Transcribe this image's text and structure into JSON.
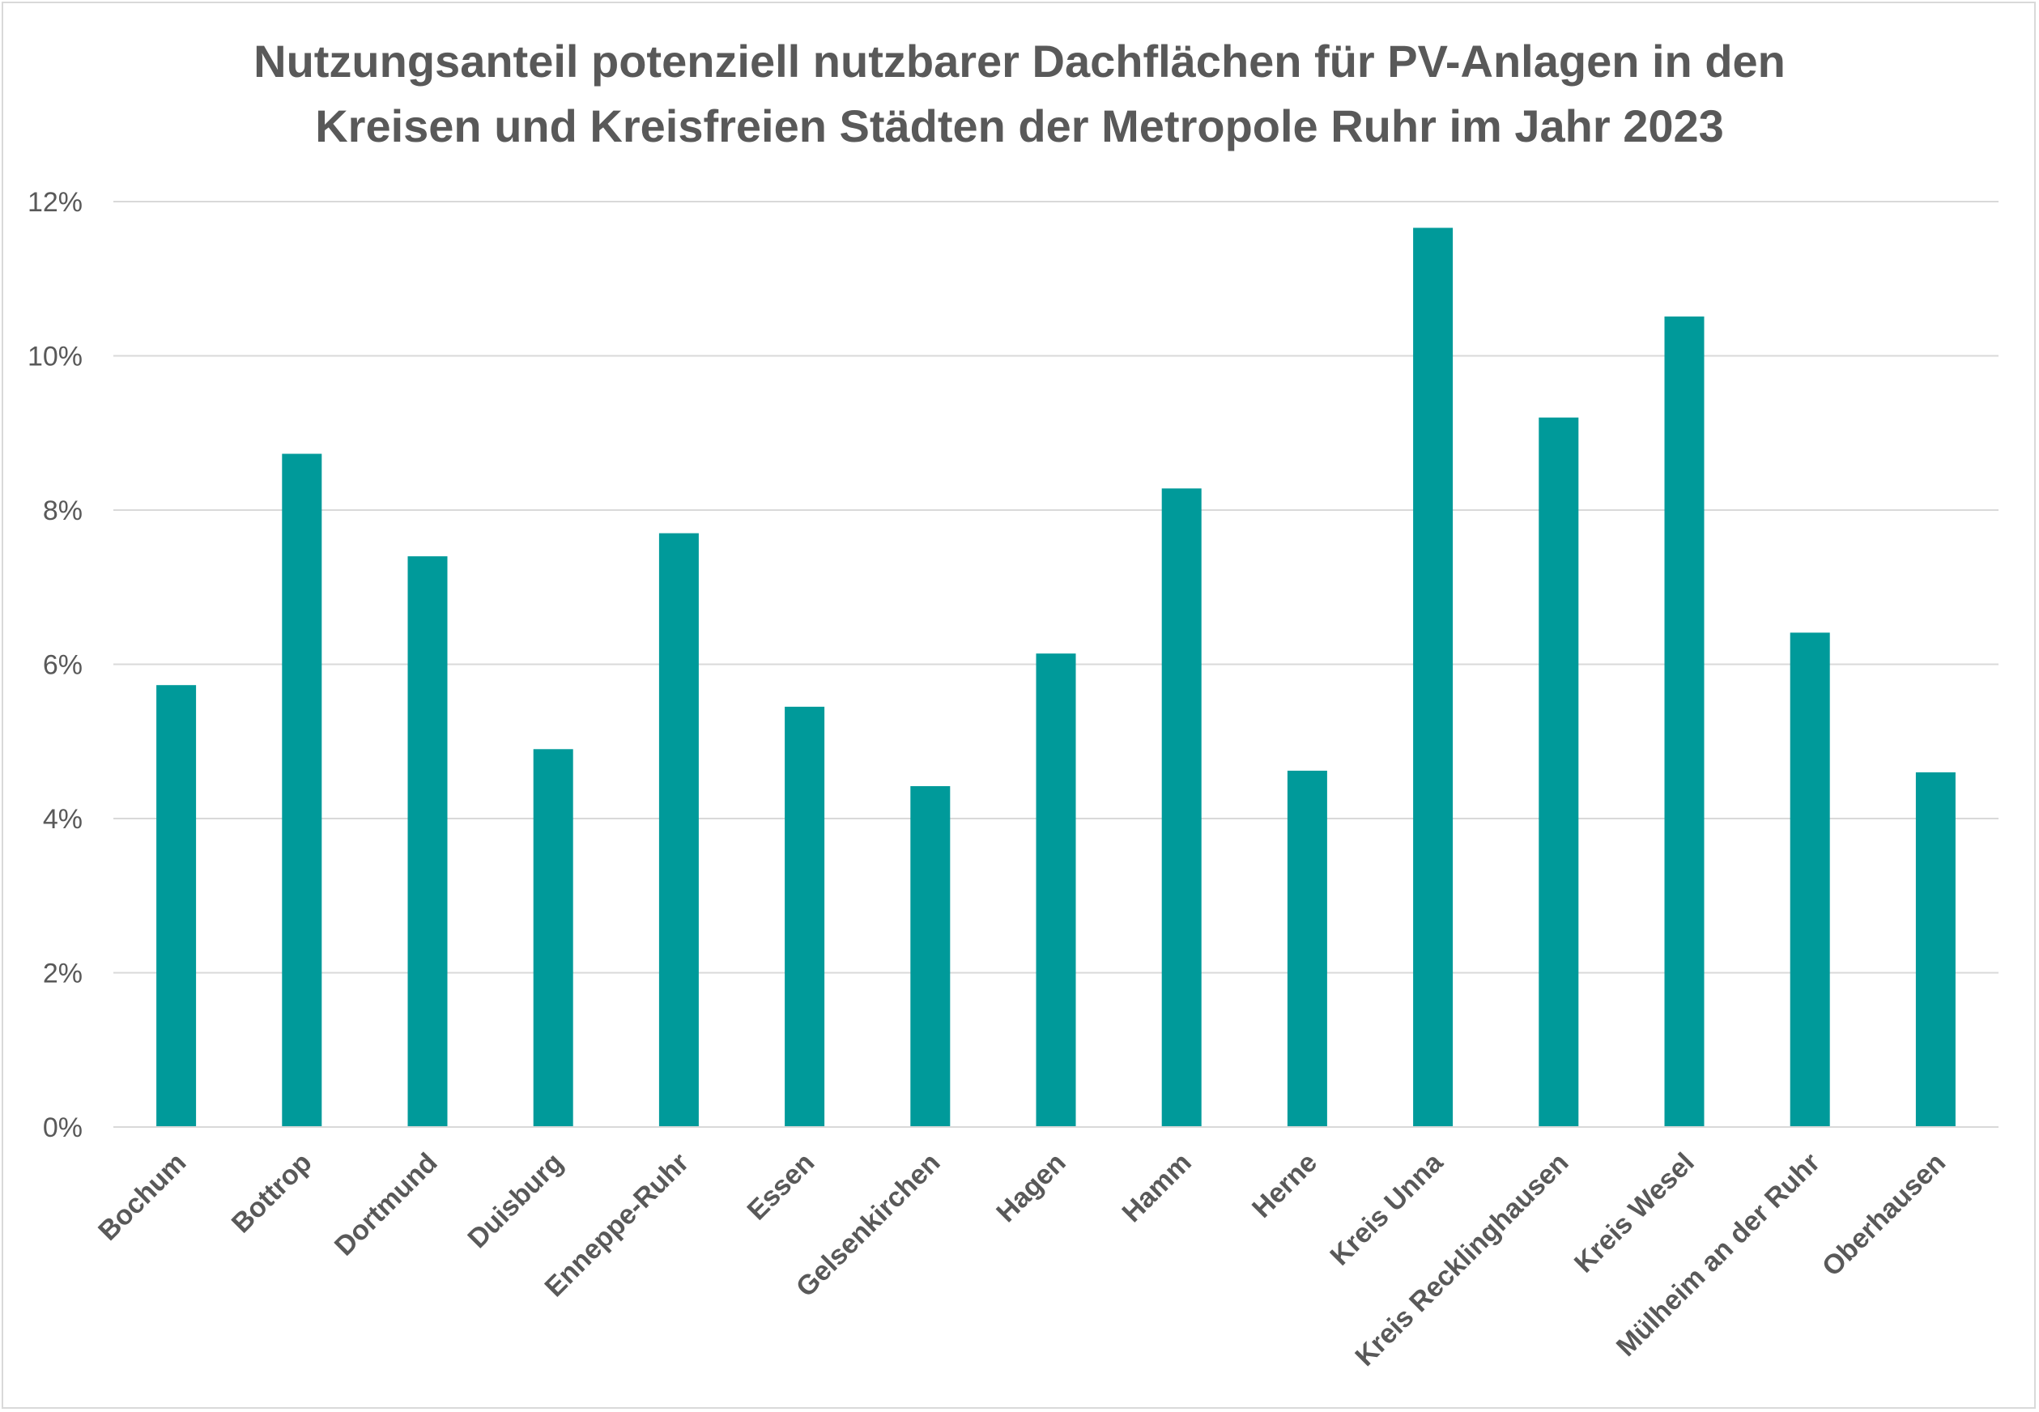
{
  "chart_data": {
    "type": "bar",
    "title_lines": [
      "Nutzungsanteil potenziell nutzbarer Dachflächen für PV-Anlagen in den",
      "Kreisen und Kreisfreien Städten der Metropole Ruhr im Jahr 2023"
    ],
    "xlabel": "",
    "ylabel": "",
    "ylim": [
      0,
      12
    ],
    "y_ticks": [
      0,
      2,
      4,
      6,
      8,
      10,
      12
    ],
    "y_tick_labels": [
      "0%",
      "2%",
      "4%",
      "6%",
      "8%",
      "10%",
      "12%"
    ],
    "grid": true,
    "legend": "none",
    "categories": [
      "Bochum",
      "Bottrop",
      "Dortmund",
      "Duisburg",
      "Enneppe-Ruhr",
      "Essen",
      "Gelsenkirchen",
      "Hagen",
      "Hamm",
      "Herne",
      "Kreis Unna",
      "Kreis Recklinghausen",
      "Kreis Wesel",
      "Mülheim an der Ruhr",
      "Oberhausen"
    ],
    "series": [
      {
        "name": "Nutzungsanteil",
        "color": "#009a9a",
        "values": [
          5.73,
          8.73,
          7.4,
          4.9,
          7.7,
          5.45,
          4.42,
          6.14,
          8.28,
          4.62,
          11.66,
          9.2,
          10.51,
          6.41,
          4.6
        ]
      }
    ]
  }
}
